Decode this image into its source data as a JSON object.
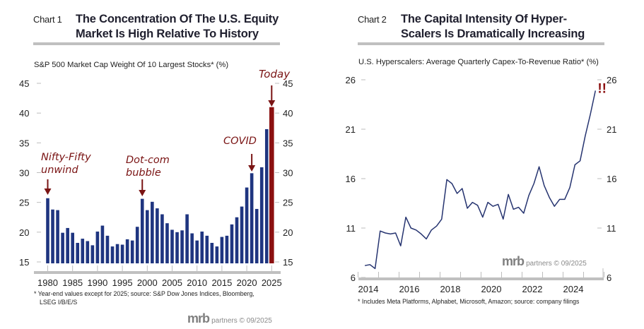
{
  "chart1": {
    "number_label": "Chart 1",
    "title_line1": "The Concentration Of The U.S. Equity",
    "title_line2": "Market Is High Relative To History",
    "subtitle": "S&P 500 Market Cap Weight Of 10 Largest Stocks* (%)",
    "footnote_line1": "* Year-end values except for 2025; source: S&P Dow Jones Indices, Bloomberg,",
    "footnote_line2": "LSEG I/B/E/S",
    "logo_main": "mrb",
    "logo_rest": "partners © 09/2025",
    "colors": {
      "bar": "#1f3580",
      "highlight": "#8b1010",
      "annotation": "#7a1414",
      "axis": "#c0c0c0"
    }
  },
  "chart2": {
    "number_label": "Chart 2",
    "title_line1": "The Capital Intensity Of Hyper-",
    "title_line2": "Scalers Is Dramatically Increasing",
    "subtitle": "U.S. Hyperscalers: Average Quarterly Capex-To-Revenue Ratio* (%)",
    "footnote": "* Includes Meta Platforms, Alphabet, Microsoft, Amazon; source: company filings",
    "logo_main": "mrb",
    "logo_rest": "partners © 09/2025",
    "colors": {
      "line": "#263470",
      "annotation": "#8b1010",
      "axis": "#c0c0c0"
    }
  },
  "chart_data": [
    {
      "type": "bar",
      "title": "The Concentration Of The U.S. Equity Market Is High Relative To History",
      "ylabel": "S&P 500 Market Cap Weight Of 10 Largest Stocks* (%)",
      "xlabel": "",
      "ylim": [
        15,
        45
      ],
      "yticks": [
        15,
        20,
        25,
        30,
        35,
        40,
        45
      ],
      "xtick_labels": [
        "1980",
        "1985",
        "1990",
        "1995",
        "2000",
        "2005",
        "2010",
        "2015",
        "2020",
        "2025"
      ],
      "grid": false,
      "categories": [
        1980,
        1981,
        1982,
        1983,
        1984,
        1985,
        1986,
        1987,
        1988,
        1989,
        1990,
        1991,
        1992,
        1993,
        1994,
        1995,
        1996,
        1997,
        1998,
        1999,
        2000,
        2001,
        2002,
        2003,
        2004,
        2005,
        2006,
        2007,
        2008,
        2009,
        2010,
        2011,
        2012,
        2013,
        2014,
        2015,
        2016,
        2017,
        2018,
        2019,
        2020,
        2021,
        2022,
        2023,
        2024,
        2025
      ],
      "values": [
        25.7,
        23.8,
        23.7,
        19.9,
        20.7,
        19.9,
        18.2,
        18.9,
        18.5,
        17.8,
        20.1,
        21.1,
        19.4,
        17.6,
        18.0,
        17.9,
        18.8,
        18.6,
        20.9,
        25.6,
        23.7,
        25.1,
        24.0,
        23.0,
        21.5,
        20.4,
        20.0,
        20.3,
        23.0,
        19.8,
        18.6,
        20.1,
        19.4,
        18.2,
        17.6,
        19.2,
        19.4,
        21.3,
        22.5,
        24.3,
        27.5,
        29.9,
        23.9,
        30.9,
        37.3,
        41.0
      ],
      "highlight_category": 2025,
      "annotations": [
        {
          "text_line1": "Nifty-Fifty",
          "text_line2": "unwind",
          "category": 1980
        },
        {
          "text_line1": "Dot-com",
          "text_line2": "bubble",
          "category": 1999
        },
        {
          "text_line1": "COVID",
          "text_line2": "",
          "category": 2021
        },
        {
          "text_line1": "Today",
          "text_line2": "",
          "category": 2025
        }
      ]
    },
    {
      "type": "line",
      "title": "The Capital Intensity Of Hyper-Scalers Is Dramatically Increasing",
      "ylabel": "U.S. Hyperscalers: Average Quarterly Capex-To-Revenue Ratio* (%)",
      "xlabel": "",
      "ylim": [
        6,
        26
      ],
      "yticks": [
        6,
        11,
        16,
        21,
        26
      ],
      "xlim": [
        2013.75,
        2025.75
      ],
      "xtick_labels": [
        "2014",
        "2016",
        "2018",
        "2020",
        "2022",
        "2024"
      ],
      "grid": false,
      "series": [
        {
          "name": "Average Quarterly Capex-To-Revenue Ratio",
          "x_start": 2013.83,
          "x_step": 0.25,
          "values": [
            7.2,
            7.3,
            6.9,
            10.7,
            10.5,
            10.4,
            10.5,
            9.2,
            12.1,
            11.0,
            10.8,
            10.4,
            9.9,
            10.8,
            11.2,
            11.9,
            15.9,
            15.5,
            14.5,
            15.0,
            13.0,
            13.6,
            13.3,
            12.1,
            13.6,
            13.2,
            13.4,
            11.9,
            14.4,
            12.9,
            13.1,
            12.5,
            14.3,
            15.5,
            17.2,
            15.3,
            14.1,
            13.2,
            13.9,
            13.9,
            15.1,
            17.4,
            17.8,
            20.3,
            22.5,
            24.9
          ]
        }
      ],
      "annotations": [
        {
          "text": "!!",
          "position": "end-of-series"
        }
      ]
    }
  ]
}
